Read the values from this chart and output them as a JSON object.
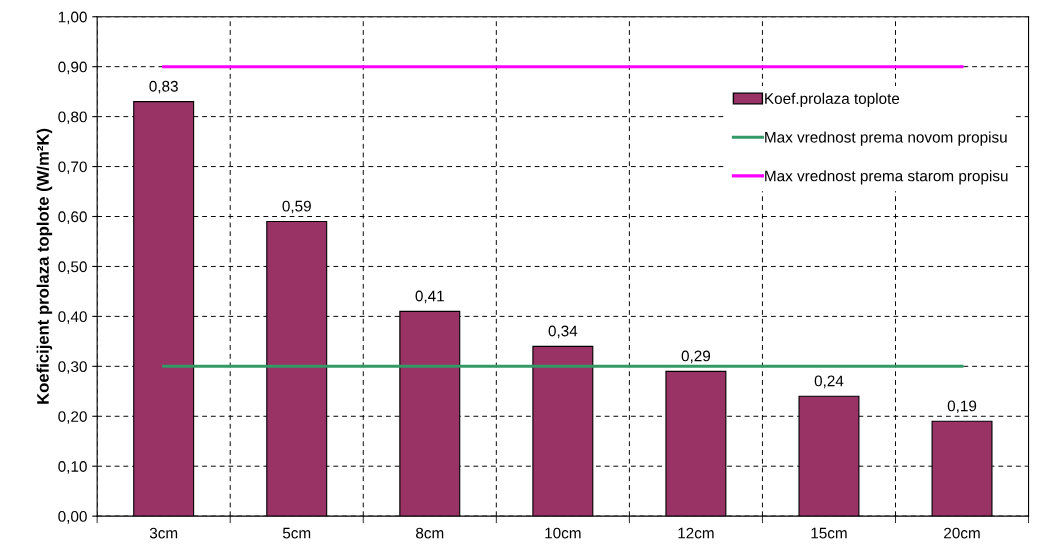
{
  "chart_data": {
    "type": "bar",
    "ylabel": "Koeficijent prolaza toplote (W/m²K)",
    "categories": [
      "3cm",
      "5cm",
      "8cm",
      "10cm",
      "12cm",
      "15cm",
      "20cm"
    ],
    "series": [
      {
        "name": "Koef.prolaza toplote",
        "color": "#993366",
        "values": [
          0.83,
          0.59,
          0.41,
          0.34,
          0.29,
          0.24,
          0.19
        ],
        "value_labels": [
          "0,83",
          "0,59",
          "0,41",
          "0,34",
          "0,29",
          "0,24",
          "0,19"
        ]
      },
      {
        "name": "Max vrednost prema novom propisu",
        "type": "line",
        "color": "#339966",
        "values": [
          0.3,
          0.3,
          0.3,
          0.3,
          0.3,
          0.3,
          0.3
        ]
      },
      {
        "name": "Max vrednost prema starom propisu",
        "type": "line",
        "color": "#ff00ff",
        "values": [
          0.9,
          0.9,
          0.9,
          0.9,
          0.9,
          0.9,
          0.9
        ]
      }
    ],
    "ylim": [
      0,
      1
    ],
    "yticks": [
      {
        "value": 0,
        "label": "0,00"
      },
      {
        "value": 0.1,
        "label": "0,10"
      },
      {
        "value": 0.2,
        "label": "0,20"
      },
      {
        "value": 0.3,
        "label": "0,30"
      },
      {
        "value": 0.4,
        "label": "0,40"
      },
      {
        "value": 0.5,
        "label": "0,50"
      },
      {
        "value": 0.6,
        "label": "0,60"
      },
      {
        "value": 0.7,
        "label": "0,70"
      },
      {
        "value": 0.8,
        "label": "0,80"
      },
      {
        "value": 0.9,
        "label": "0,90"
      },
      {
        "value": 1,
        "label": "1,00"
      }
    ],
    "grid": true,
    "legend": "top right",
    "line_style": "solid",
    "marker": "none"
  }
}
